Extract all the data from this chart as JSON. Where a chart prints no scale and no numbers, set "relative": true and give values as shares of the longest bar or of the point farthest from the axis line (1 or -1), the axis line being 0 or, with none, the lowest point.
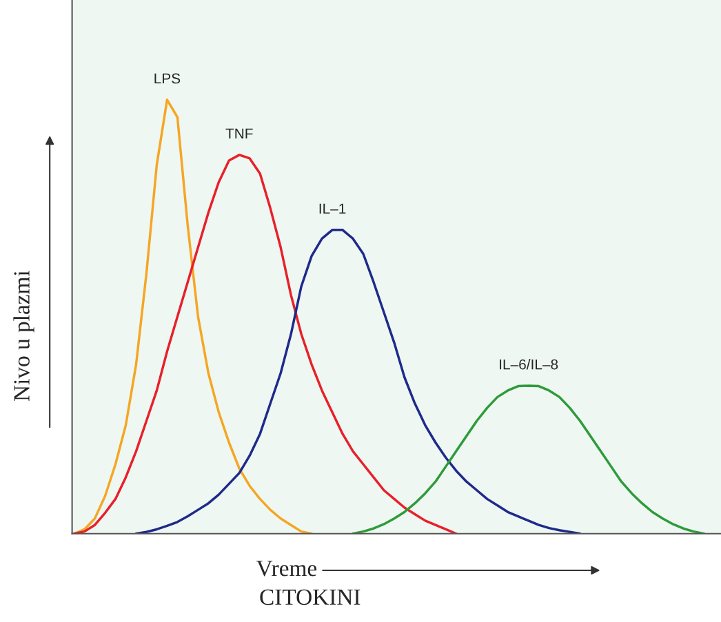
{
  "chart_data": {
    "type": "line",
    "relative": true,
    "xlabel": "Vreme",
    "ylabel": "Nivo u plazmi",
    "annotations": [
      "CITOKINI"
    ],
    "tick_labels": false,
    "categories": [
      null,
      null,
      null,
      null,
      null,
      null,
      null,
      null,
      null,
      null,
      null,
      null,
      null,
      null,
      null,
      null,
      null,
      null,
      null,
      null,
      null,
      null,
      null,
      null,
      null,
      null,
      null,
      null,
      null,
      null,
      null,
      null,
      null,
      null,
      null,
      null,
      null,
      null,
      null,
      null,
      null,
      null,
      null,
      null,
      null,
      null,
      null,
      null,
      null,
      null,
      null,
      null,
      null,
      null,
      null,
      null,
      null,
      null,
      null,
      null,
      null,
      null,
      null
    ],
    "series": [
      {
        "name": "LPS",
        "color": "#f5a623",
        "values": [
          0,
          0.01,
          0.035,
          0.087,
          0.16,
          0.25,
          0.39,
          0.6,
          0.85,
          1,
          0.96,
          0.71,
          0.5,
          0.37,
          0.28,
          0.21,
          0.15,
          0.11,
          0.08,
          0.055,
          0.035,
          0.02,
          0.005,
          0,
          null,
          null,
          null,
          null,
          null,
          null,
          null,
          null,
          null,
          null,
          null,
          null,
          null,
          null,
          null,
          null,
          null,
          null,
          null,
          null,
          null,
          null,
          null,
          null,
          null,
          null,
          null,
          null,
          null,
          null,
          null,
          null,
          null,
          null,
          null,
          null,
          null,
          null,
          null
        ]
      },
      {
        "name": "TNF",
        "color": "#e8202a",
        "values": [
          0,
          0.005,
          0.02,
          0.048,
          0.08,
          0.13,
          0.19,
          0.26,
          0.33,
          0.42,
          0.5,
          0.58,
          0.66,
          0.74,
          0.81,
          0.86,
          0.873,
          0.865,
          0.83,
          0.75,
          0.66,
          0.55,
          0.46,
          0.39,
          0.33,
          0.28,
          0.23,
          0.19,
          0.16,
          0.13,
          0.1,
          0.08,
          0.06,
          0.045,
          0.03,
          0.02,
          0.01,
          0,
          null,
          null,
          null,
          null,
          null,
          null,
          null,
          null,
          null,
          null,
          null,
          null,
          null,
          null,
          null,
          null,
          null,
          null,
          null,
          null,
          null,
          null,
          null,
          null,
          null
        ]
      },
      {
        "name": "IL–1",
        "color": "#1f2a8a",
        "values": [
          null,
          null,
          null,
          null,
          null,
          null,
          0,
          0.004,
          0.01,
          0.018,
          0.027,
          0.04,
          0.055,
          0.07,
          0.09,
          0.115,
          0.14,
          0.18,
          0.23,
          0.3,
          0.37,
          0.46,
          0.57,
          0.64,
          0.68,
          0.7,
          0.7,
          0.68,
          0.645,
          0.58,
          0.51,
          0.44,
          0.36,
          0.3,
          0.25,
          0.21,
          0.175,
          0.145,
          0.12,
          0.1,
          0.08,
          0.065,
          0.05,
          0.04,
          0.03,
          0.02,
          0.013,
          0.008,
          0.004,
          0,
          null,
          null,
          null,
          null,
          null,
          null,
          null,
          null,
          null,
          null,
          null,
          null,
          null
        ]
      },
      {
        "name": "IL–6/IL–8",
        "color": "#2e9b3a",
        "values": [
          null,
          null,
          null,
          null,
          null,
          null,
          null,
          null,
          null,
          null,
          null,
          null,
          null,
          null,
          null,
          null,
          null,
          null,
          null,
          null,
          null,
          null,
          null,
          null,
          null,
          null,
          null,
          0,
          0.005,
          0.012,
          0.022,
          0.035,
          0.05,
          0.07,
          0.093,
          0.12,
          0.155,
          0.19,
          0.225,
          0.26,
          0.29,
          0.315,
          0.33,
          0.34,
          0.341,
          0.34,
          0.33,
          0.315,
          0.29,
          0.26,
          0.225,
          0.19,
          0.155,
          0.12,
          0.093,
          0.07,
          0.05,
          0.035,
          0.022,
          0.012,
          0.005,
          0,
          null
        ]
      }
    ]
  }
}
